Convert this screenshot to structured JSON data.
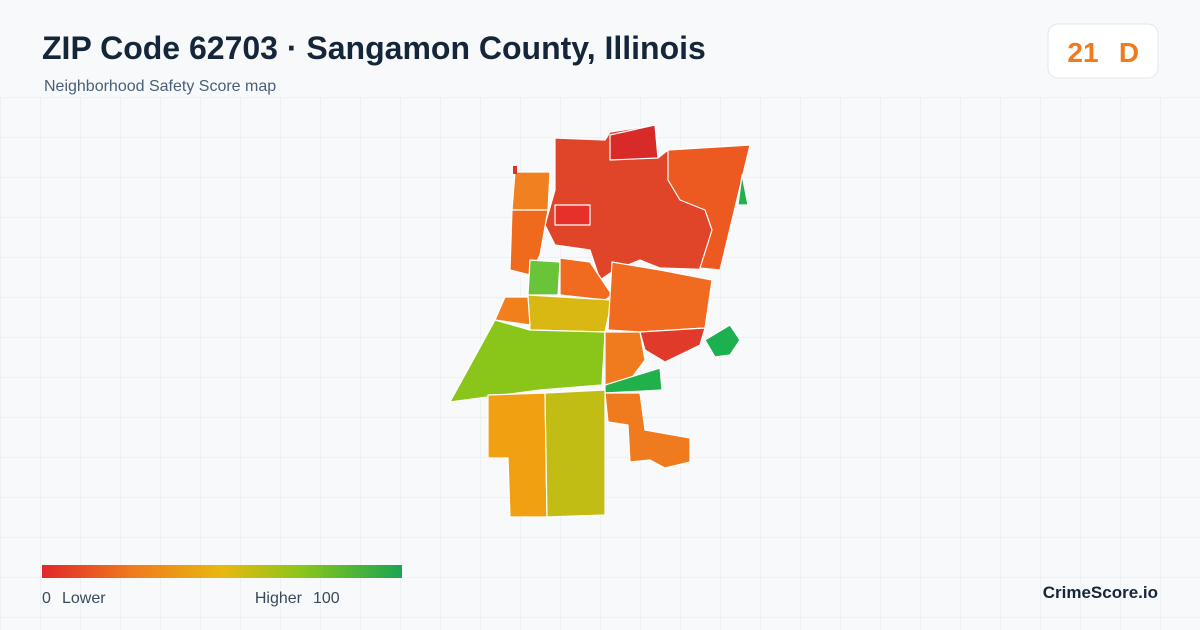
{
  "header": {
    "title": "ZIP Code 62703 · Sangamon County, Illinois",
    "subtitle": "Neighborhood Safety Score map"
  },
  "score": {
    "value": "21",
    "grade": "D"
  },
  "legend": {
    "min": "0",
    "min_label": "Lower",
    "max_label": "Higher",
    "max": "100"
  },
  "footer": {
    "brand": "CrimeScore.io"
  }
}
